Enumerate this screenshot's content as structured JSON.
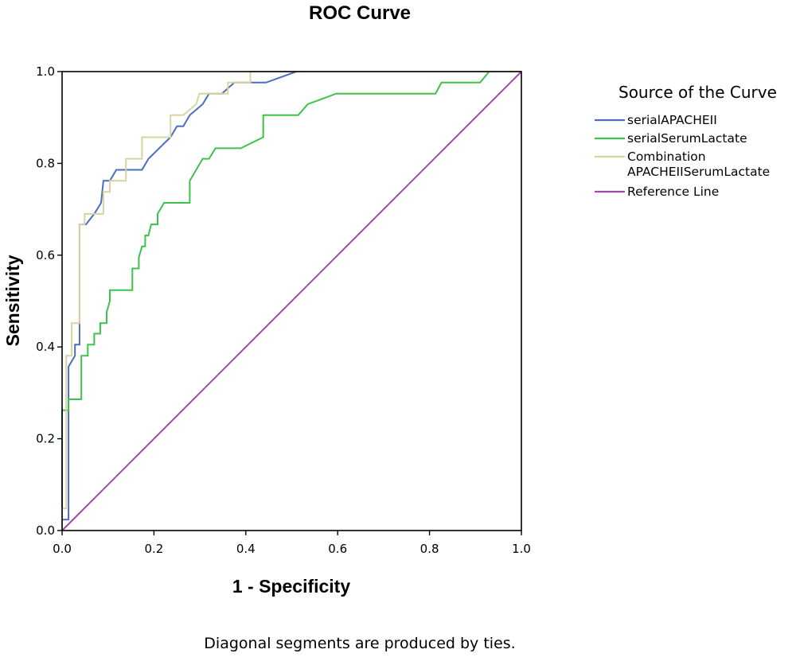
{
  "chart_data": {
    "type": "line",
    "title": "ROC Curve",
    "xlabel": "1 - Specificity",
    "ylabel": "Sensitivity",
    "xlim": [
      0,
      1
    ],
    "ylim": [
      0,
      1
    ],
    "x_ticks": [
      "0.0",
      "0.2",
      "0.4",
      "0.6",
      "0.8",
      "1.0"
    ],
    "y_ticks": [
      "0.0",
      "0.2",
      "0.4",
      "0.6",
      "0.8",
      "1.0"
    ],
    "grid": false,
    "legend_title": "Source of the Curve",
    "legend_position": "right",
    "footnote": "Diagonal segments are produced by ties.",
    "series": [
      {
        "name": "serialAPACHEII",
        "label_lines": [
          "serialAPACHEII"
        ],
        "color": "#4A6EC0",
        "points": [
          [
            0,
            0
          ],
          [
            0,
            0.024
          ],
          [
            0.014,
            0.024
          ],
          [
            0.014,
            0.357
          ],
          [
            0.028,
            0.381
          ],
          [
            0.028,
            0.405
          ],
          [
            0.038,
            0.405
          ],
          [
            0.038,
            0.667
          ],
          [
            0.052,
            0.667
          ],
          [
            0.07,
            0.69
          ],
          [
            0.085,
            0.714
          ],
          [
            0.09,
            0.762
          ],
          [
            0.104,
            0.762
          ],
          [
            0.118,
            0.786
          ],
          [
            0.132,
            0.786
          ],
          [
            0.146,
            0.786
          ],
          [
            0.174,
            0.786
          ],
          [
            0.188,
            0.81
          ],
          [
            0.236,
            0.857
          ],
          [
            0.25,
            0.881
          ],
          [
            0.264,
            0.881
          ],
          [
            0.278,
            0.905
          ],
          [
            0.306,
            0.929
          ],
          [
            0.32,
            0.952
          ],
          [
            0.348,
            0.952
          ],
          [
            0.375,
            0.976
          ],
          [
            0.444,
            0.976
          ],
          [
            0.51,
            1.0
          ],
          [
            1.0,
            1.0
          ]
        ]
      },
      {
        "name": "serialSerumLactate",
        "label_lines": [
          "serialSerumLactate"
        ],
        "color": "#3EC24A",
        "points": [
          [
            0,
            0
          ],
          [
            0,
            0.262
          ],
          [
            0.014,
            0.262
          ],
          [
            0.014,
            0.286
          ],
          [
            0.028,
            0.286
          ],
          [
            0.042,
            0.286
          ],
          [
            0.042,
            0.381
          ],
          [
            0.056,
            0.381
          ],
          [
            0.056,
            0.405
          ],
          [
            0.07,
            0.405
          ],
          [
            0.07,
            0.429
          ],
          [
            0.083,
            0.429
          ],
          [
            0.083,
            0.452
          ],
          [
            0.097,
            0.452
          ],
          [
            0.097,
            0.476
          ],
          [
            0.104,
            0.5
          ],
          [
            0.104,
            0.524
          ],
          [
            0.111,
            0.524
          ],
          [
            0.153,
            0.524
          ],
          [
            0.153,
            0.571
          ],
          [
            0.167,
            0.571
          ],
          [
            0.167,
            0.595
          ],
          [
            0.174,
            0.619
          ],
          [
            0.181,
            0.619
          ],
          [
            0.181,
            0.643
          ],
          [
            0.188,
            0.643
          ],
          [
            0.194,
            0.667
          ],
          [
            0.208,
            0.667
          ],
          [
            0.208,
            0.69
          ],
          [
            0.222,
            0.714
          ],
          [
            0.278,
            0.714
          ],
          [
            0.278,
            0.762
          ],
          [
            0.306,
            0.81
          ],
          [
            0.32,
            0.81
          ],
          [
            0.334,
            0.833
          ],
          [
            0.389,
            0.833
          ],
          [
            0.438,
            0.857
          ],
          [
            0.438,
            0.905
          ],
          [
            0.514,
            0.905
          ],
          [
            0.535,
            0.929
          ],
          [
            0.597,
            0.952
          ],
          [
            0.813,
            0.952
          ],
          [
            0.826,
            0.976
          ],
          [
            0.91,
            0.976
          ],
          [
            0.93,
            1.0
          ],
          [
            1.0,
            1.0
          ]
        ]
      },
      {
        "name": "Combination APACHEIISerumLactate",
        "label_lines": [
          "Combination",
          "APACHEIISerumLactate"
        ],
        "color": "#D8D4A2",
        "points": [
          [
            0,
            0
          ],
          [
            0,
            0.048
          ],
          [
            0.009,
            0.048
          ],
          [
            0.009,
            0.381
          ],
          [
            0.021,
            0.381
          ],
          [
            0.021,
            0.452
          ],
          [
            0.038,
            0.452
          ],
          [
            0.038,
            0.667
          ],
          [
            0.049,
            0.667
          ],
          [
            0.049,
            0.69
          ],
          [
            0.069,
            0.69
          ],
          [
            0.069,
            0.69
          ],
          [
            0.09,
            0.69
          ],
          [
            0.09,
            0.738
          ],
          [
            0.104,
            0.738
          ],
          [
            0.104,
            0.762
          ],
          [
            0.139,
            0.762
          ],
          [
            0.139,
            0.81
          ],
          [
            0.174,
            0.81
          ],
          [
            0.174,
            0.857
          ],
          [
            0.236,
            0.857
          ],
          [
            0.236,
            0.905
          ],
          [
            0.264,
            0.905
          ],
          [
            0.292,
            0.929
          ],
          [
            0.299,
            0.952
          ],
          [
            0.361,
            0.952
          ],
          [
            0.361,
            0.976
          ],
          [
            0.41,
            0.976
          ],
          [
            0.41,
            1.0
          ],
          [
            1.0,
            1.0
          ]
        ]
      },
      {
        "name": "Reference Line",
        "label_lines": [
          "Reference Line"
        ],
        "color": "#9E4AA6",
        "points": [
          [
            0,
            0
          ],
          [
            1,
            1
          ]
        ]
      }
    ]
  }
}
